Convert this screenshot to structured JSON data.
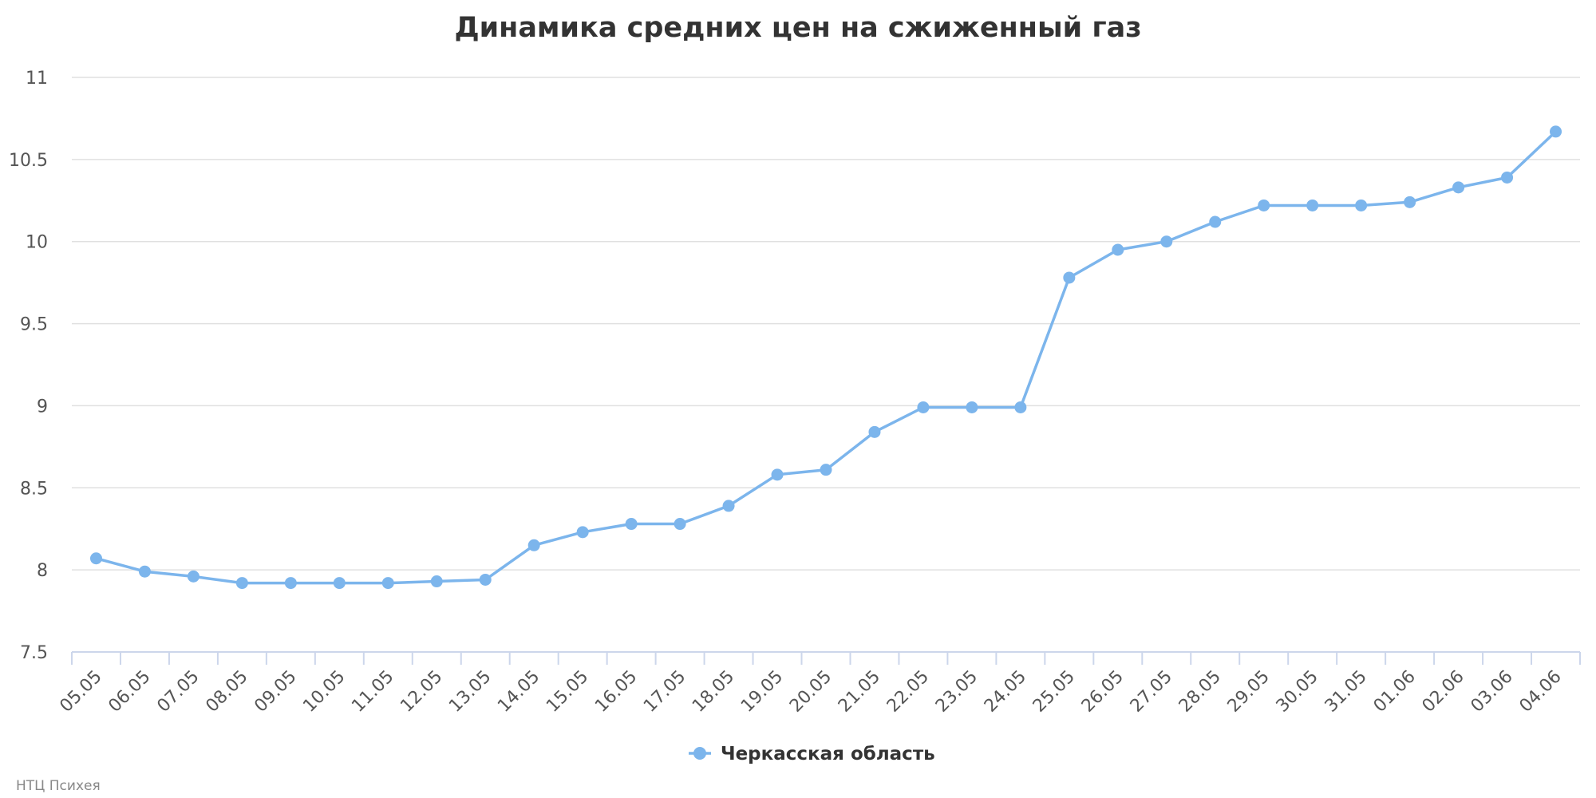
{
  "credit": "НТЦ Психея",
  "colors": {
    "series": "#7cb5ec",
    "grid": "#e0e0e0",
    "axis": "#ccd6eb",
    "text": "#333333",
    "tick_text": "#555555"
  },
  "chart_data": {
    "type": "line",
    "title": "Динамика средних цен на сжиженный газ",
    "xlabel": "",
    "ylabel": "",
    "ylim": [
      7.5,
      11
    ],
    "yticks": [
      "7.5",
      "8",
      "8.5",
      "9",
      "9.5",
      "10",
      "10.5",
      "11"
    ],
    "grid": true,
    "legend_position": "bottom-center",
    "categories": [
      "05.05",
      "06.05",
      "07.05",
      "08.05",
      "09.05",
      "10.05",
      "11.05",
      "12.05",
      "13.05",
      "14.05",
      "15.05",
      "16.05",
      "17.05",
      "18.05",
      "19.05",
      "20.05",
      "21.05",
      "22.05",
      "23.05",
      "24.05",
      "25.05",
      "26.05",
      "27.05",
      "28.05",
      "29.05",
      "30.05",
      "31.05",
      "01.06",
      "02.06",
      "03.06",
      "04.06"
    ],
    "series": [
      {
        "name": "Черкасская область",
        "color": "#7cb5ec",
        "values": [
          8.07,
          7.99,
          7.96,
          7.92,
          7.92,
          7.92,
          7.92,
          7.93,
          7.94,
          8.15,
          8.23,
          8.28,
          8.28,
          8.39,
          8.58,
          8.61,
          8.84,
          8.99,
          8.99,
          8.99,
          9.78,
          9.95,
          10.0,
          10.12,
          10.22,
          10.22,
          10.22,
          10.24,
          10.33,
          10.39,
          10.67
        ]
      }
    ]
  }
}
